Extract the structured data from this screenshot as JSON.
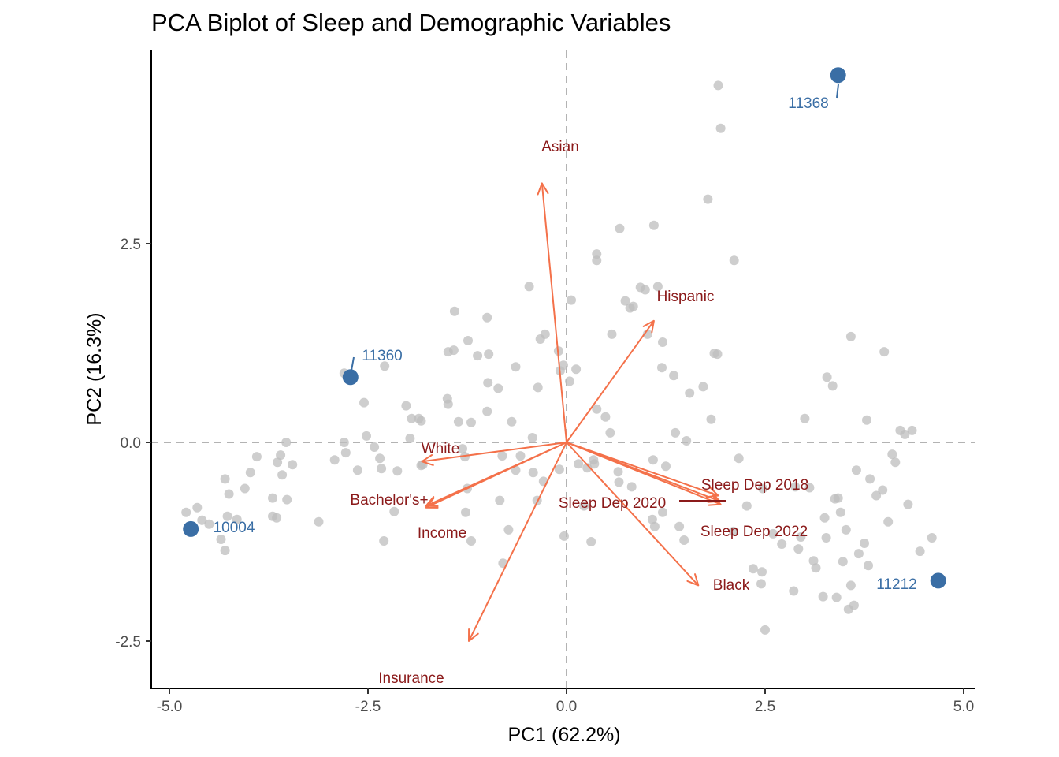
{
  "colors": {
    "background": "#ffffff",
    "points": "#bdbdbd",
    "highlight": "#3a6ea5",
    "arrows": "#f4714a",
    "loading_labels": "#8b1a1a",
    "zero_lines": "#b3b3b3"
  },
  "chart_data": {
    "type": "scatter",
    "title": "PCA Biplot of Sleep and Demographic Variables",
    "xlabel": "PC1 (62.2%)",
    "ylabel": "PC2 (16.3%)",
    "xlim": [
      -5.25,
      5.15
    ],
    "ylim": [
      -3.1,
      4.95
    ],
    "xticks": [
      -5.0,
      -2.5,
      0.0,
      2.5,
      5.0
    ],
    "xtick_labels": [
      "-5.0",
      "-2.5",
      "0.0",
      "2.5",
      "5.0"
    ],
    "yticks": [
      -2.5,
      0.0,
      2.5
    ],
    "ytick_labels": [
      "-2.5",
      "0.0",
      "2.5"
    ],
    "grid": false,
    "reference_lines": {
      "x": 0,
      "y": 0,
      "style": "dashed"
    },
    "points": [
      [
        -4.79,
        -0.88
      ],
      [
        -4.65,
        -0.82
      ],
      [
        -4.59,
        -0.98
      ],
      [
        -4.5,
        -1.03
      ],
      [
        -4.35,
        -1.22
      ],
      [
        -4.3,
        -1.36
      ],
      [
        -4.3,
        -0.46
      ],
      [
        -4.25,
        -0.65
      ],
      [
        -4.27,
        -0.93
      ],
      [
        -4.15,
        -0.97
      ],
      [
        -4.05,
        -0.58
      ],
      [
        -3.98,
        -0.38
      ],
      [
        -3.9,
        -0.18
      ],
      [
        -3.7,
        -0.7
      ],
      [
        -3.7,
        -0.93
      ],
      [
        -3.65,
        -0.95
      ],
      [
        -3.64,
        -0.25
      ],
      [
        -3.6,
        -0.16
      ],
      [
        -3.58,
        -0.41
      ],
      [
        -3.52,
        -0.72
      ],
      [
        -3.53,
        0.0
      ],
      [
        -3.45,
        -0.28
      ],
      [
        -3.12,
        -1.0
      ],
      [
        -2.92,
        -0.22
      ],
      [
        -2.8,
        0.0
      ],
      [
        -2.78,
        -0.13
      ],
      [
        -2.8,
        0.87
      ],
      [
        -2.63,
        -0.35
      ],
      [
        -2.55,
        0.5
      ],
      [
        -2.52,
        0.08
      ],
      [
        -2.42,
        -0.06
      ],
      [
        -2.35,
        -0.2
      ],
      [
        -2.33,
        -0.33
      ],
      [
        -2.29,
        0.96
      ],
      [
        -2.3,
        -1.24
      ],
      [
        -2.17,
        -0.87
      ],
      [
        -2.13,
        -0.36
      ],
      [
        -2.02,
        0.46
      ],
      [
        -1.97,
        0.05
      ],
      [
        -1.95,
        0.3
      ],
      [
        -1.86,
        0.3
      ],
      [
        -1.83,
        0.27
      ],
      [
        -1.81,
        -0.28
      ],
      [
        -1.83,
        -0.29
      ],
      [
        -1.5,
        0.55
      ],
      [
        -1.49,
        0.48
      ],
      [
        -1.49,
        1.14
      ],
      [
        -1.42,
        1.16
      ],
      [
        -1.41,
        1.65
      ],
      [
        -1.36,
        0.26
      ],
      [
        -1.28,
        -0.18
      ],
      [
        -1.31,
        -0.08
      ],
      [
        -1.25,
        -0.58
      ],
      [
        -1.24,
        1.28
      ],
      [
        -1.27,
        -0.88
      ],
      [
        -1.2,
        0.25
      ],
      [
        -1.2,
        -1.24
      ],
      [
        -1.12,
        1.09
      ],
      [
        -1.0,
        0.39
      ],
      [
        -1.0,
        1.57
      ],
      [
        -0.99,
        0.75
      ],
      [
        -0.98,
        1.11
      ],
      [
        -0.86,
        0.68
      ],
      [
        -0.81,
        -0.17
      ],
      [
        -0.84,
        -0.73
      ],
      [
        -0.8,
        -1.52
      ],
      [
        -0.73,
        -1.1
      ],
      [
        -0.69,
        0.26
      ],
      [
        -0.64,
        0.95
      ],
      [
        -0.64,
        -0.35
      ],
      [
        -0.58,
        -0.17
      ],
      [
        -0.43,
        0.06
      ],
      [
        -0.42,
        -0.38
      ],
      [
        -0.47,
        1.96
      ],
      [
        -0.36,
        0.69
      ],
      [
        -0.37,
        -0.73
      ],
      [
        -0.29,
        -0.49
      ],
      [
        -0.33,
        1.3
      ],
      [
        -0.27,
        1.36
      ],
      [
        -0.09,
        -0.34
      ],
      [
        -0.1,
        1.15
      ],
      [
        -0.08,
        0.9
      ],
      [
        -0.03,
        -1.18
      ],
      [
        0.06,
        1.79
      ],
      [
        -0.04,
        0.97
      ],
      [
        0.04,
        0.77
      ],
      [
        0.12,
        0.92
      ],
      [
        0.15,
        -0.27
      ],
      [
        0.22,
        -0.8
      ],
      [
        0.26,
        -0.32
      ],
      [
        0.31,
        -1.25
      ],
      [
        0.34,
        -0.22
      ],
      [
        0.35,
        -0.27
      ],
      [
        0.38,
        0.42
      ],
      [
        0.38,
        2.37
      ],
      [
        0.38,
        2.29
      ],
      [
        0.49,
        0.32
      ],
      [
        0.55,
        0.12
      ],
      [
        0.57,
        1.36
      ],
      [
        0.66,
        -0.5
      ],
      [
        0.65,
        -0.37
      ],
      [
        0.67,
        2.69
      ],
      [
        0.74,
        1.78
      ],
      [
        0.82,
        -0.56
      ],
      [
        0.8,
        1.69
      ],
      [
        0.84,
        1.71
      ],
      [
        0.93,
        1.95
      ],
      [
        0.99,
        1.92
      ],
      [
        1.02,
        1.36
      ],
      [
        1.08,
        -0.97
      ],
      [
        1.09,
        -0.22
      ],
      [
        1.1,
        2.73
      ],
      [
        1.15,
        1.96
      ],
      [
        1.11,
        -1.06
      ],
      [
        1.2,
        0.94
      ],
      [
        1.25,
        -0.3
      ],
      [
        1.21,
        -0.88
      ],
      [
        1.21,
        1.26
      ],
      [
        1.35,
        0.84
      ],
      [
        1.37,
        0.12
      ],
      [
        1.42,
        -1.06
      ],
      [
        1.48,
        -1.23
      ],
      [
        1.51,
        0.02
      ],
      [
        1.55,
        0.62
      ],
      [
        1.72,
        0.7
      ],
      [
        1.78,
        3.06
      ],
      [
        1.82,
        0.29
      ],
      [
        1.86,
        1.12
      ],
      [
        1.9,
        1.11
      ],
      [
        1.91,
        4.49
      ],
      [
        1.94,
        3.95
      ],
      [
        2.1,
        -1.12
      ],
      [
        2.11,
        2.29
      ],
      [
        2.17,
        -0.2
      ],
      [
        2.27,
        -0.8
      ],
      [
        2.35,
        -1.59
      ],
      [
        2.45,
        -1.78
      ],
      [
        2.46,
        -1.63
      ],
      [
        2.47,
        -0.58
      ],
      [
        2.6,
        -1.15
      ],
      [
        2.71,
        -1.28
      ],
      [
        2.86,
        -1.87
      ],
      [
        2.88,
        -0.56
      ],
      [
        2.92,
        -1.34
      ],
      [
        2.95,
        -1.19
      ],
      [
        3.0,
        0.3
      ],
      [
        3.06,
        -0.57
      ],
      [
        3.11,
        -1.49
      ],
      [
        3.14,
        -1.58
      ],
      [
        3.25,
        -0.95
      ],
      [
        3.27,
        -1.2
      ],
      [
        3.28,
        0.82
      ],
      [
        3.35,
        0.71
      ],
      [
        3.38,
        -0.71
      ],
      [
        3.42,
        -0.7
      ],
      [
        3.45,
        -0.88
      ],
      [
        3.48,
        -1.5
      ],
      [
        3.52,
        -1.1
      ],
      [
        3.58,
        1.33
      ],
      [
        3.58,
        -1.8
      ],
      [
        3.62,
        -2.05
      ],
      [
        3.65,
        -0.35
      ],
      [
        3.68,
        -1.4
      ],
      [
        3.75,
        -1.27
      ],
      [
        3.78,
        0.28
      ],
      [
        3.8,
        -1.55
      ],
      [
        3.82,
        -0.46
      ],
      [
        3.9,
        -0.67
      ],
      [
        3.98,
        -0.6
      ],
      [
        4.0,
        1.14
      ],
      [
        4.05,
        -1.0
      ],
      [
        4.1,
        -0.15
      ],
      [
        4.14,
        -0.25
      ],
      [
        4.2,
        0.15
      ],
      [
        4.26,
        0.1
      ],
      [
        4.3,
        -0.78
      ],
      [
        4.35,
        0.15
      ],
      [
        4.45,
        -1.37
      ],
      [
        4.6,
        -1.2
      ],
      [
        3.23,
        -1.94
      ],
      [
        3.4,
        -1.95
      ],
      [
        3.55,
        -2.1
      ],
      [
        2.5,
        -2.36
      ]
    ],
    "highlighted_points": [
      {
        "label": "11368",
        "x": 3.42,
        "y": 4.62
      },
      {
        "label": "11360",
        "x": -2.72,
        "y": 0.82
      },
      {
        "label": "10004",
        "x": -4.73,
        "y": -1.09
      },
      {
        "label": "11212",
        "x": 4.68,
        "y": -1.74
      }
    ],
    "loadings": [
      {
        "label": "Asian",
        "x": -0.31,
        "y": 3.26
      },
      {
        "label": "Hispanic",
        "x": 1.1,
        "y": 1.53
      },
      {
        "label": "White",
        "x": -1.82,
        "y": -0.24
      },
      {
        "label": "Bachelor's+",
        "x": -1.77,
        "y": -0.8
      },
      {
        "label": "Income",
        "x": -1.77,
        "y": -0.82
      },
      {
        "label": "Sleep Dep 2018",
        "x": 1.91,
        "y": -0.67
      },
      {
        "label": "Sleep Dep 2020",
        "x": 1.93,
        "y": -0.74
      },
      {
        "label": "Sleep Dep 2022",
        "x": 1.94,
        "y": -0.78
      },
      {
        "label": "Black",
        "x": 1.66,
        "y": -1.8
      },
      {
        "label": "Insurance",
        "x": -1.23,
        "y": -2.5
      }
    ]
  }
}
